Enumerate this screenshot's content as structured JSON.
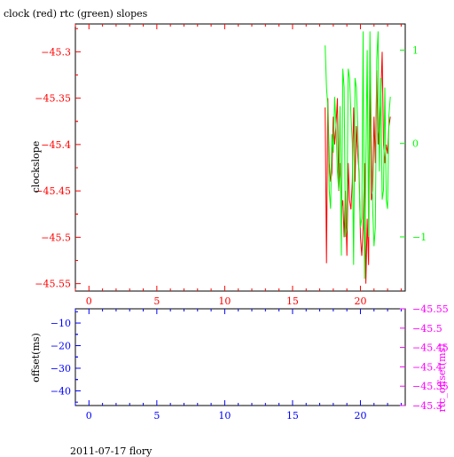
{
  "title": "clock (red) rtc (green) slopes",
  "footer": "2011-07-17 flory",
  "colors": {
    "clock": "#ff0000",
    "rtc": "#00ff00",
    "offset": "#0000ff",
    "rtc_offset": "#ff00ff",
    "frame": "#000000"
  },
  "chart_data": [
    {
      "type": "line",
      "title": "clock (red) rtc (green) slopes",
      "ylabel": "clockslope",
      "y2label": "",
      "xlim": [
        -1,
        23.3
      ],
      "ylim": [
        -45.558,
        -45.27
      ],
      "y2lim": [
        -1.58,
        1.28
      ],
      "xticks": [
        0,
        5,
        10,
        15,
        20
      ],
      "xtick_labels": [
        "0",
        "5",
        "10",
        "15",
        "20"
      ],
      "yticks": [
        -45.3,
        -45.35,
        -45.4,
        -45.45,
        -45.5,
        -45.55
      ],
      "ytick_labels": [
        "−45.3",
        "−45.35",
        "−45.4",
        "−45.45",
        "−45.5",
        "−45.55"
      ],
      "y2ticks": [
        1,
        0,
        -1
      ],
      "y2tick_labels": [
        "1",
        "0",
        "−1"
      ],
      "grid": false,
      "series": [
        {
          "name": "clock",
          "color": "#ff0000",
          "axis": "left",
          "x": [
            17.4,
            17.5,
            17.6,
            17.7,
            17.8,
            17.9,
            18.0,
            18.1,
            18.2,
            18.3,
            18.4,
            18.5,
            18.6,
            18.7,
            18.8,
            18.9,
            19.0,
            19.1,
            19.2,
            19.3,
            19.4,
            19.5,
            19.6,
            19.7,
            19.8,
            19.9,
            20.0,
            20.1,
            20.2,
            20.3,
            20.4,
            20.5,
            20.6,
            20.7,
            20.8,
            20.9,
            21.0,
            21.1,
            21.2,
            21.3,
            21.4,
            21.5,
            21.6,
            21.7,
            21.8,
            21.9,
            22.0,
            22.1,
            22.2
          ],
          "y": [
            -45.36,
            -45.528,
            -45.35,
            -45.42,
            -45.44,
            -45.43,
            -45.37,
            -45.4,
            -45.38,
            -45.35,
            -45.45,
            -45.42,
            -45.47,
            -45.46,
            -45.5,
            -45.45,
            -45.52,
            -45.42,
            -45.46,
            -45.47,
            -45.44,
            -45.36,
            -45.44,
            -45.38,
            -45.41,
            -45.43,
            -45.5,
            -45.52,
            -45.49,
            -45.42,
            -45.55,
            -45.48,
            -45.53,
            -45.31,
            -45.46,
            -45.45,
            -45.37,
            -45.42,
            -45.32,
            -45.4,
            -45.38,
            -45.35,
            -45.3,
            -45.4,
            -45.42,
            -45.4,
            -45.41,
            -45.38,
            -45.37
          ]
        },
        {
          "name": "rtc",
          "color": "#00ff00",
          "axis": "right",
          "x": [
            17.4,
            17.5,
            17.6,
            17.7,
            17.8,
            17.9,
            18.0,
            18.1,
            18.2,
            18.3,
            18.4,
            18.5,
            18.6,
            18.7,
            18.8,
            18.9,
            19.0,
            19.1,
            19.2,
            19.3,
            19.4,
            19.5,
            19.6,
            19.7,
            19.8,
            19.9,
            20.0,
            20.1,
            20.2,
            20.3,
            20.4,
            20.5,
            20.6,
            20.7,
            20.8,
            20.9,
            21.0,
            21.1,
            21.2,
            21.3,
            21.4,
            21.5,
            21.6,
            21.7,
            21.8,
            21.9,
            22.0,
            22.1,
            22.2
          ],
          "y": [
            1.05,
            0.6,
            0.4,
            -0.5,
            -0.7,
            0.1,
            -0.1,
            0.5,
            0.2,
            -0.3,
            -0.5,
            0.4,
            -1.2,
            0.8,
            0.6,
            -1.0,
            -0.9,
            0.8,
            0.7,
            0.3,
            0.0,
            -1.3,
            0.7,
            0.6,
            0.2,
            -0.4,
            -0.9,
            -0.8,
            1.2,
            -1.45,
            -0.2,
            1.0,
            -1.0,
            1.2,
            0.1,
            -0.7,
            -1.1,
            -0.9,
            0.9,
            1.2,
            -0.3,
            0.7,
            -0.6,
            -0.5,
            0.6,
            -0.6,
            -0.7,
            0.3,
            0.5
          ]
        }
      ]
    },
    {
      "type": "line",
      "ylabel": "offset(ms)",
      "y2label": "rtc_offset(ms)",
      "xlim": [
        -1,
        23.3
      ],
      "ylim": [
        -46.5,
        -3.7
      ],
      "y2lim": [
        -45.3,
        -45.55
      ],
      "xticks": [
        0,
        5,
        10,
        15,
        20
      ],
      "xtick_labels": [
        "0",
        "5",
        "10",
        "15",
        "20"
      ],
      "yticks": [
        -40,
        -30,
        -20,
        -10
      ],
      "ytick_labels": [
        "−40",
        "−30",
        "−20",
        "−10"
      ],
      "y2ticks": [
        -45.3,
        -45.35,
        -45.4,
        -45.45,
        -45.5,
        -45.55
      ],
      "y2tick_labels": [
        "−45.3",
        "−45.35",
        "−45.4",
        "−45.45",
        "−45.5",
        "−45.55"
      ],
      "grid": false,
      "series": []
    }
  ]
}
